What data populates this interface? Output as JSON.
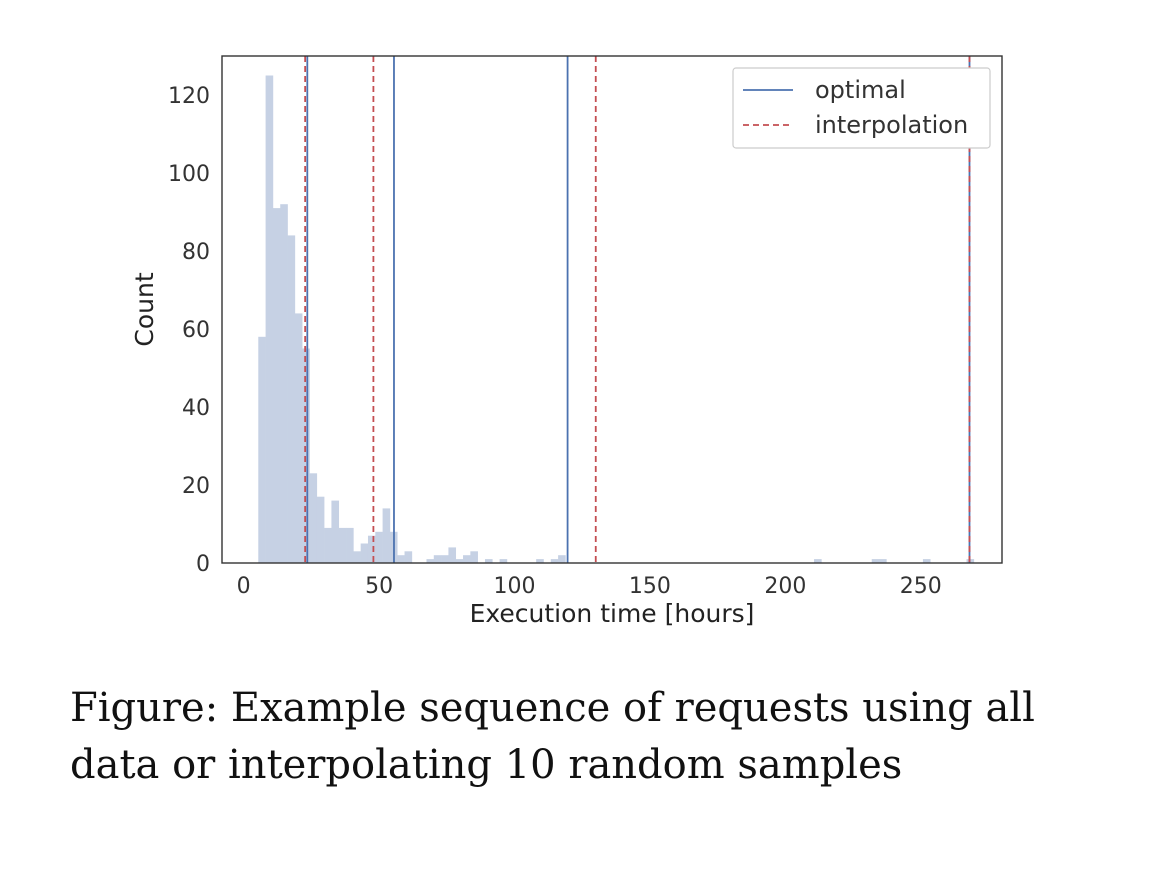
{
  "caption": "Figure: Example sequence of requests using all data or interpolating 10 random samples",
  "chart_data": {
    "type": "bar",
    "subtype": "histogram-with-vertical-lines",
    "xlabel": "Execution time [hours]",
    "ylabel": "Count",
    "xlim": [
      -8,
      280
    ],
    "ylim": [
      0,
      130
    ],
    "xticks": [
      0,
      50,
      100,
      150,
      200,
      250
    ],
    "yticks": [
      0,
      20,
      40,
      60,
      80,
      100,
      120
    ],
    "grid": false,
    "legend_position": "top-right",
    "colors": {
      "histogram": "#c6d1e4",
      "optimal": "#4c72b0",
      "interpolation": "#c44e52"
    },
    "histogram": {
      "bin_width": 2.7,
      "bins": [
        {
          "x0": 5.4,
          "count": 58
        },
        {
          "x0": 8.1,
          "count": 125
        },
        {
          "x0": 10.8,
          "count": 91
        },
        {
          "x0": 13.5,
          "count": 92
        },
        {
          "x0": 16.2,
          "count": 84
        },
        {
          "x0": 18.9,
          "count": 64
        },
        {
          "x0": 21.6,
          "count": 55
        },
        {
          "x0": 24.3,
          "count": 23
        },
        {
          "x0": 27.0,
          "count": 17
        },
        {
          "x0": 29.7,
          "count": 9
        },
        {
          "x0": 32.4,
          "count": 16
        },
        {
          "x0": 35.1,
          "count": 9
        },
        {
          "x0": 37.8,
          "count": 9
        },
        {
          "x0": 40.5,
          "count": 3
        },
        {
          "x0": 43.2,
          "count": 5
        },
        {
          "x0": 45.9,
          "count": 7
        },
        {
          "x0": 48.6,
          "count": 8
        },
        {
          "x0": 51.3,
          "count": 14
        },
        {
          "x0": 54.0,
          "count": 8
        },
        {
          "x0": 56.7,
          "count": 2
        },
        {
          "x0": 59.4,
          "count": 3
        },
        {
          "x0": 62.1,
          "count": 0
        },
        {
          "x0": 64.8,
          "count": 0
        },
        {
          "x0": 67.5,
          "count": 1
        },
        {
          "x0": 70.2,
          "count": 2
        },
        {
          "x0": 72.9,
          "count": 2
        },
        {
          "x0": 75.6,
          "count": 4
        },
        {
          "x0": 78.3,
          "count": 1
        },
        {
          "x0": 81.0,
          "count": 2
        },
        {
          "x0": 83.7,
          "count": 3
        },
        {
          "x0": 89.1,
          "count": 1
        },
        {
          "x0": 94.5,
          "count": 1
        },
        {
          "x0": 108.0,
          "count": 1
        },
        {
          "x0": 113.4,
          "count": 1
        },
        {
          "x0": 116.1,
          "count": 2
        },
        {
          "x0": 210.6,
          "count": 1
        },
        {
          "x0": 231.9,
          "count": 1
        },
        {
          "x0": 234.6,
          "count": 1
        },
        {
          "x0": 250.8,
          "count": 1
        },
        {
          "x0": 266.9,
          "count": 1
        }
      ]
    },
    "series": [
      {
        "name": "optimal",
        "style": "solid",
        "x": [
          23.5,
          55.5,
          119.6,
          268.0
        ]
      },
      {
        "name": "interpolation",
        "style": "dashed",
        "x": [
          22.7,
          47.9,
          130.0,
          268.0
        ]
      }
    ]
  }
}
